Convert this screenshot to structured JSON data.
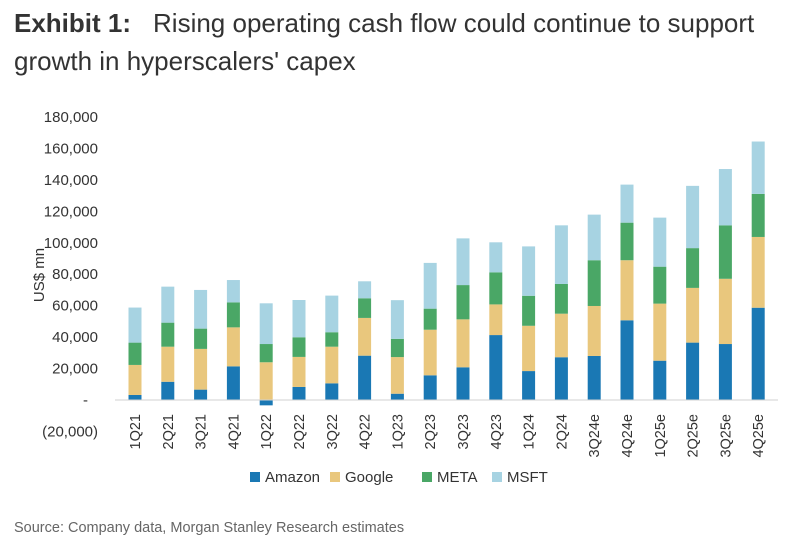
{
  "header": {
    "exhibit": "Exhibit 1:",
    "title": "Rising operating cash flow could continue to support growth in hyperscalers' capex"
  },
  "source": "Source: Company data, Morgan Stanley Research estimates",
  "chart_data": {
    "type": "bar",
    "stacked": true,
    "title": "",
    "xlabel": "",
    "ylabel": "US$ mn",
    "ylim": [
      -20000,
      180000
    ],
    "yticks": [
      -20000,
      0,
      20000,
      40000,
      60000,
      80000,
      100000,
      120000,
      140000,
      160000,
      180000
    ],
    "ytick_labels": [
      "(20,000)",
      "-",
      "20,000",
      "40,000",
      "60,000",
      "80,000",
      "100,000",
      "120,000",
      "140,000",
      "160,000",
      "180,000"
    ],
    "grid": false,
    "legend_position": "bottom",
    "categories": [
      "1Q21",
      "2Q21",
      "3Q21",
      "4Q21",
      "1Q22",
      "2Q22",
      "3Q22",
      "4Q22",
      "1Q23",
      "2Q23",
      "3Q23",
      "4Q23",
      "1Q24",
      "2Q24",
      "3Q24e",
      "4Q24e",
      "1Q25e",
      "2Q25e",
      "3Q25e",
      "4Q25e"
    ],
    "series": [
      {
        "name": "Amazon",
        "color": "#1a78b4",
        "values": [
          3200,
          11600,
          6600,
          21400,
          -3400,
          8300,
          10600,
          28200,
          4000,
          15700,
          20800,
          41300,
          18400,
          27200,
          28000,
          50700,
          25000,
          36500,
          35600,
          58700
        ]
      },
      {
        "name": "Google",
        "color": "#e9c77d",
        "values": [
          19100,
          22300,
          25900,
          24800,
          24000,
          19100,
          23300,
          24000,
          23300,
          29000,
          30500,
          19500,
          28800,
          27700,
          31800,
          38200,
          36300,
          34800,
          41500,
          45000
        ]
      },
      {
        "name": "META",
        "color": "#4aa766",
        "values": [
          14200,
          15300,
          12900,
          15900,
          11600,
          12500,
          9200,
          12500,
          11600,
          13400,
          21800,
          20400,
          19100,
          18900,
          29100,
          23900,
          23500,
          25300,
          34000,
          27400
        ]
      },
      {
        "name": "MSFT",
        "color": "#a7d3e2",
        "values": [
          22300,
          22900,
          24600,
          14200,
          25900,
          23700,
          23300,
          10800,
          24600,
          29100,
          29700,
          19100,
          31400,
          37300,
          29000,
          24200,
          31200,
          39600,
          35800,
          33300
        ]
      }
    ]
  }
}
